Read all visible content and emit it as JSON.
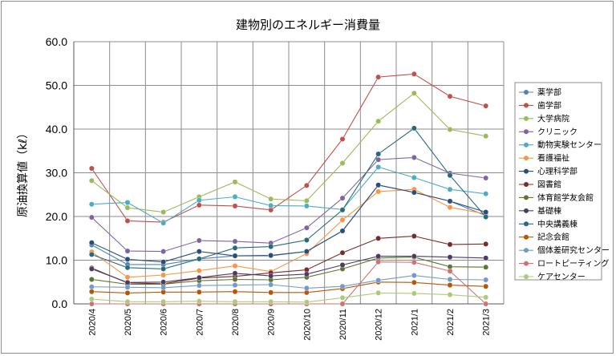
{
  "chart_data": {
    "type": "line",
    "title": "建物別のエネルギー消費量",
    "ylabel": "原油換算値（kℓ）",
    "xlabel": "",
    "ylim": [
      0,
      60
    ],
    "yticks": [
      "0.0",
      "10.0",
      "20.0",
      "30.0",
      "40.0",
      "50.0",
      "60.0"
    ],
    "grid": true,
    "legend_position": "right",
    "categories": [
      "2020/4",
      "2020/5",
      "2020/6",
      "2020/7",
      "2020/8",
      "2020/9",
      "2020/10",
      "2020/11",
      "2020/12",
      "2021/1",
      "2021/2",
      "2021/3"
    ],
    "series": [
      {
        "name": "薬学部",
        "color": "#4f81bd",
        "values": [
          13.5,
          9.0,
          9.0,
          10.3,
          11.0,
          11.0,
          12.0,
          16.7,
          27.2,
          25.5,
          23.5,
          20.2
        ]
      },
      {
        "name": "歯学部",
        "color": "#c0504d",
        "values": [
          31.0,
          19.0,
          18.7,
          22.6,
          22.4,
          21.5,
          27.1,
          37.7,
          51.9,
          52.6,
          47.5,
          45.3
        ]
      },
      {
        "name": "大学病院",
        "color": "#9bbb59",
        "values": [
          28.2,
          22.0,
          21.0,
          24.5,
          27.9,
          24.0,
          23.6,
          32.2,
          41.8,
          48.2,
          39.9,
          38.4
        ]
      },
      {
        "name": "クリニック",
        "color": "#8064a2",
        "values": [
          19.8,
          12.1,
          12.0,
          14.5,
          14.3,
          13.9,
          17.4,
          24.2,
          33.0,
          33.5,
          29.9,
          28.8
        ]
      },
      {
        "name": "動物実験センター",
        "color": "#4bacc6",
        "values": [
          22.8,
          23.2,
          18.5,
          23.7,
          24.5,
          22.5,
          22.4,
          21.6,
          31.3,
          28.9,
          26.2,
          25.2
        ]
      },
      {
        "name": "看護福祉",
        "color": "#f79646",
        "values": [
          11.9,
          6.1,
          6.6,
          7.6,
          8.7,
          7.4,
          11.5,
          19.2,
          25.7,
          26.2,
          22.1,
          20.6
        ]
      },
      {
        "name": "心理科学部",
        "color": "#2c4d75",
        "values": [
          14.0,
          10.2,
          9.6,
          12.0,
          11.0,
          11.1,
          12.0,
          16.7,
          27.2,
          25.5,
          23.5,
          21.0
        ]
      },
      {
        "name": "図書館",
        "color": "#772c2a",
        "values": [
          8.2,
          4.8,
          4.6,
          5.9,
          6.3,
          7.1,
          7.8,
          11.7,
          15.0,
          15.5,
          13.6,
          13.7
        ]
      },
      {
        "name": "体育館学友会館",
        "color": "#5f7530",
        "values": [
          5.6,
          4.5,
          4.5,
          5.3,
          5.6,
          5.5,
          6.1,
          8.0,
          10.5,
          10.7,
          8.5,
          8.4
        ]
      },
      {
        "name": "基礎棟",
        "color": "#4d3b62",
        "values": [
          8.0,
          4.9,
          5.0,
          6.0,
          7.0,
          6.4,
          6.8,
          8.9,
          10.9,
          10.9,
          10.7,
          10.5
        ]
      },
      {
        "name": "中央講義棟",
        "color": "#276a7c",
        "values": [
          11.3,
          8.3,
          8.0,
          10.3,
          12.8,
          13.1,
          14.6,
          21.5,
          34.3,
          40.2,
          29.4,
          19.9
        ]
      },
      {
        "name": "記念会館",
        "color": "#b65708",
        "values": [
          2.8,
          2.5,
          2.7,
          2.7,
          2.8,
          2.6,
          2.6,
          3.5,
          5.0,
          4.9,
          4.3,
          4.0
        ]
      },
      {
        "name": "個体差研究センター",
        "color": "#729aca",
        "values": [
          3.9,
          3.8,
          3.7,
          4.2,
          4.3,
          4.4,
          3.6,
          4.0,
          5.4,
          6.5,
          5.6,
          5.5
        ]
      },
      {
        "name": "ロートピーティング",
        "color": "#cd7371",
        "values": [
          0.0,
          0.0,
          0.0,
          0.0,
          0.0,
          0.0,
          0.0,
          0.0,
          9.6,
          9.5,
          7.5,
          0.0
        ]
      },
      {
        "name": "ケアセンター",
        "color": "#afc97a",
        "values": [
          1.1,
          0.5,
          0.5,
          0.6,
          0.5,
          0.5,
          0.4,
          1.4,
          2.5,
          2.4,
          2.1,
          1.5
        ]
      }
    ]
  }
}
